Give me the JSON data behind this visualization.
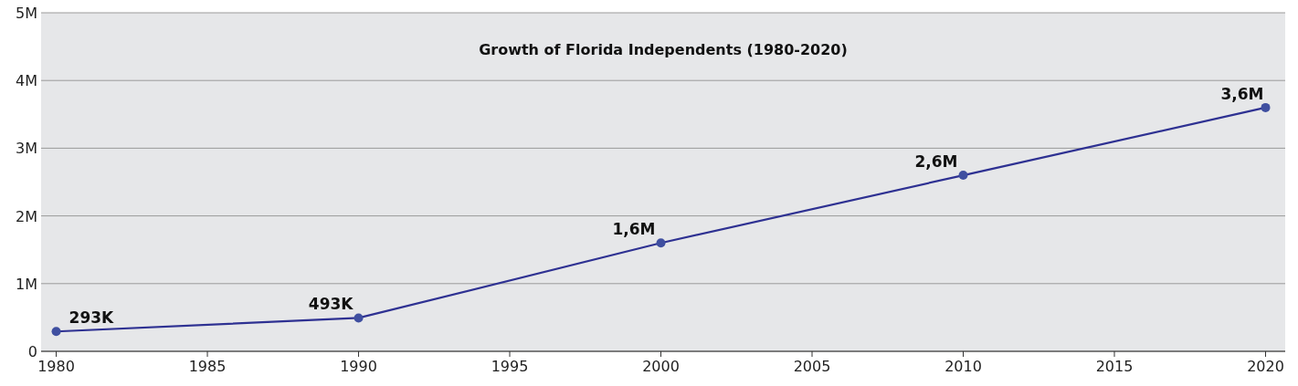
{
  "chart_data": {
    "type": "line",
    "title": "Growth of Florida Independents (1980-2020)",
    "x": [
      1980,
      1990,
      2000,
      2010,
      2020
    ],
    "series": [
      {
        "color": "#2e3192",
        "values": [
          293000,
          493000,
          1600000,
          2600000,
          3600000
        ],
        "value_labels": [
          "293K",
          "493K",
          "1,6M",
          "2,6M",
          "3,6M"
        ]
      }
    ],
    "xlim": [
      1979.5,
      2020.65
    ],
    "xticks": [
      1980,
      1985,
      1990,
      1995,
      2000,
      2005,
      2010,
      2015,
      2020
    ],
    "ylim": [
      0,
      5000000
    ],
    "yticks": [
      0,
      {
        "value": 1000000,
        "label": "1M"
      },
      {
        "value": 2000000,
        "label": "2M"
      },
      {
        "value": 3000000,
        "label": "3M"
      },
      {
        "value": 4000000,
        "label": "4M"
      },
      {
        "value": 5000000,
        "label": "5M"
      }
    ],
    "grid": "y",
    "marker": "circle",
    "line_style": "solid"
  }
}
